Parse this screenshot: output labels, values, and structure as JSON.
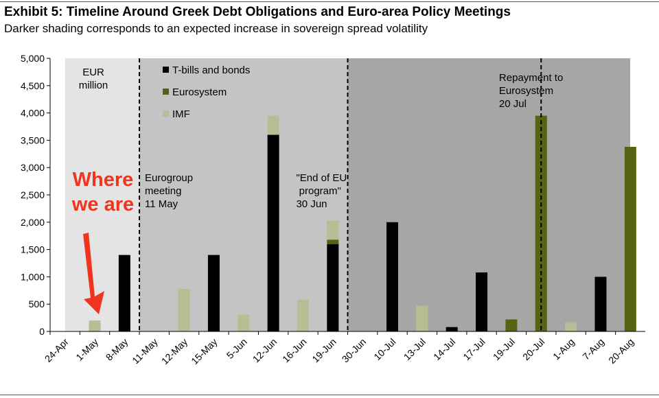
{
  "header": {
    "title": "Exhibit 5: Timeline Around Greek Debt Obligations and Euro-area Policy Meetings",
    "subtitle": "Darker shading corresponds to an expected increase in sovereign spread volatility"
  },
  "chart_data": {
    "type": "bar",
    "stacked": true,
    "unit_label": "EUR million",
    "categories": [
      "24-Apr",
      "1-May",
      "8-May",
      "11-May",
      "12-May",
      "15-May",
      "5-Jun",
      "12-Jun",
      "16-Jun",
      "19-Jun",
      "30-Jun",
      "10-Jul",
      "13-Jul",
      "14-Jul",
      "17-Jul",
      "19-Jul",
      "20-Jul",
      "1-Aug",
      "7-Aug",
      "20-Aug"
    ],
    "series": [
      {
        "name": "T-bills and bonds",
        "color": "#000000",
        "values": [
          0,
          0,
          1400,
          0,
          0,
          1400,
          0,
          3600,
          0,
          1600,
          0,
          2000,
          0,
          80,
          1080,
          0,
          0,
          0,
          1000,
          0
        ]
      },
      {
        "name": "Eurosystem",
        "color": "#546414",
        "values": [
          0,
          0,
          0,
          0,
          0,
          0,
          0,
          0,
          0,
          80,
          0,
          0,
          0,
          0,
          0,
          220,
          3950,
          0,
          0,
          3380
        ]
      },
      {
        "name": "IMF",
        "color": "#b9bd93",
        "values": [
          0,
          200,
          0,
          0,
          780,
          0,
          310,
          350,
          580,
          350,
          0,
          0,
          470,
          0,
          0,
          0,
          0,
          170,
          0,
          0
        ]
      }
    ],
    "ylim": [
      0,
      5000
    ],
    "yticks": [
      0,
      500,
      1000,
      1500,
      2000,
      2500,
      3000,
      3500,
      4000,
      4500,
      5000
    ],
    "ytick_labels": [
      "0",
      "500",
      "1,000",
      "1,500",
      "2,000",
      "2,500",
      "3,000",
      "3,500",
      "4,000",
      "4,500",
      "5,000"
    ],
    "legend_placement": "top-center",
    "shading": [
      {
        "from": "24-Apr",
        "to": "11-May",
        "color": "#e4e4e4",
        "intensity": "light"
      },
      {
        "from": "11-May",
        "to": "30-Jun",
        "color": "#c4c4c4",
        "intensity": "medium"
      },
      {
        "from": "30-Jun",
        "to": "20-Aug",
        "color": "#a6a6a6",
        "intensity": "dark"
      }
    ],
    "event_lines": [
      "11-May",
      "30-Jun",
      "20-Jul"
    ],
    "annotations": [
      {
        "lines": [
          "EUR",
          "million"
        ],
        "category": "1-May"
      },
      {
        "lines": [
          "Eurogroup",
          "meeting",
          "11 May"
        ],
        "category": "11-May"
      },
      {
        "lines": [
          "\"End of  EU",
          " program\"",
          "30 Jun"
        ],
        "category": "16-Jun"
      },
      {
        "lines": [
          "Repayment to",
          "Eurosystem",
          "20 Jul"
        ],
        "category": "19-Jul"
      }
    ],
    "callout": {
      "lines": [
        "Where",
        "we are"
      ],
      "color": "#f0341d",
      "points_to": "1-May"
    }
  }
}
